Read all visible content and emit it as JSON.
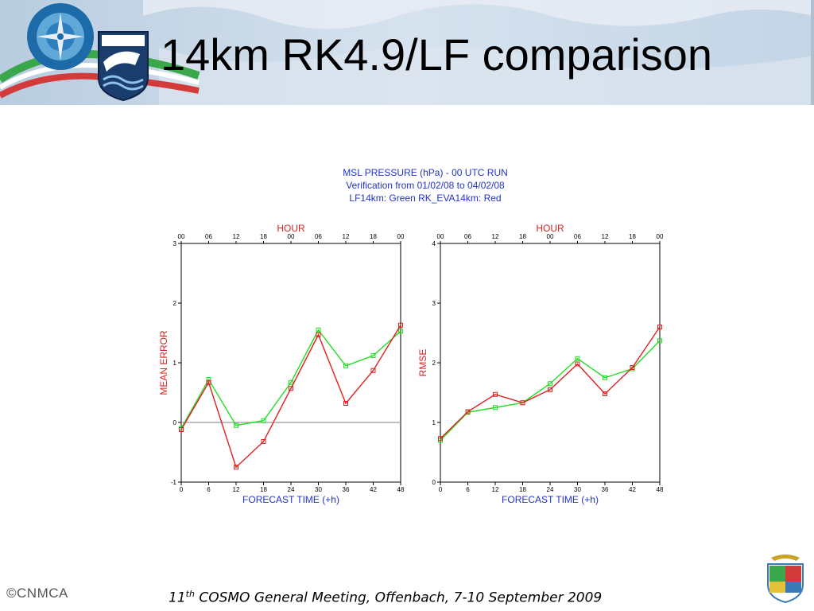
{
  "slide": {
    "title": "14km RK4.9/LF comparison",
    "footer_left": "©CNMCA",
    "footer": {
      "ordinal_number": "11",
      "ordinal_suffix": "th",
      "rest": " COSMO General Meeting, Offenbach,  7-10 September 2009"
    },
    "logo_text": "CNMCA",
    "colors": {
      "header_blue": "#c7d6e6",
      "stripe_green": "#3aa84a",
      "stripe_red": "#d33a3a",
      "title_text": "#000000",
      "chart_blue": "#2233cc",
      "chart_red": "#e02020",
      "series_green": "#22dd22",
      "series_red": "#e02020"
    }
  },
  "chart_header": {
    "line1": "MSL PRESSURE (hPa) - 00 UTC RUN",
    "line2": "Verification from 01/02/08 to 04/02/08",
    "line3": "LF14km: Green  RK_EVA14km: Red"
  },
  "chart_data": [
    {
      "type": "line",
      "xlabel": "FORECAST TIME (+h)",
      "ylabel": "MEAN ERROR",
      "top_axis_label": "HOUR",
      "top_ticks": [
        "00",
        "06",
        "12",
        "18",
        "00",
        "06",
        "12",
        "18",
        "00"
      ],
      "x": [
        0,
        6,
        12,
        18,
        24,
        30,
        36,
        42,
        48
      ],
      "xlim": [
        0,
        48
      ],
      "ylim": [
        -1,
        3
      ],
      "yticks": [
        -1,
        0,
        1,
        2,
        3
      ],
      "zero_line": true,
      "series": [
        {
          "name": "LF14km",
          "color": "#22dd22",
          "values": [
            -0.1,
            0.72,
            -0.05,
            0.03,
            0.67,
            1.55,
            0.95,
            1.12,
            1.53
          ]
        },
        {
          "name": "RK_EVA14km",
          "color": "#e02020",
          "values": [
            -0.12,
            0.67,
            -0.75,
            -0.32,
            0.57,
            1.47,
            0.32,
            0.87,
            1.63
          ]
        }
      ]
    },
    {
      "type": "line",
      "xlabel": "FORECAST TIME (+h)",
      "ylabel": "RMSE",
      "top_axis_label": "HOUR",
      "top_ticks": [
        "00",
        "06",
        "12",
        "18",
        "00",
        "06",
        "12",
        "18",
        "00"
      ],
      "x": [
        0,
        6,
        12,
        18,
        24,
        30,
        36,
        42,
        48
      ],
      "xlim": [
        0,
        48
      ],
      "ylim": [
        0,
        4
      ],
      "yticks": [
        0,
        1,
        2,
        3,
        4
      ],
      "zero_line": false,
      "series": [
        {
          "name": "LF14km",
          "color": "#22dd22",
          "values": [
            0.7,
            1.17,
            1.25,
            1.33,
            1.65,
            2.07,
            1.75,
            1.9,
            2.37
          ]
        },
        {
          "name": "RK_EVA14km",
          "color": "#e02020",
          "values": [
            0.73,
            1.18,
            1.47,
            1.33,
            1.55,
            1.98,
            1.48,
            1.92,
            2.6
          ]
        }
      ]
    }
  ]
}
